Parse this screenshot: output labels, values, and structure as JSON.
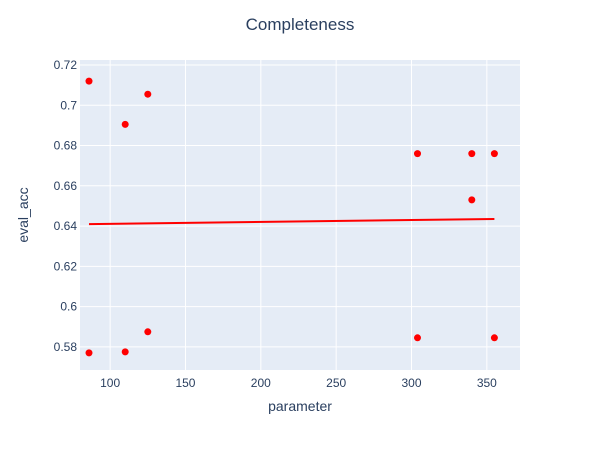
{
  "chart_data": {
    "type": "scatter",
    "title": "Completeness",
    "xlabel": "parameter",
    "ylabel": "eval_acc",
    "xlim": [
      80,
      372
    ],
    "ylim": [
      0.5685,
      0.7225
    ],
    "xticks": [
      100,
      150,
      200,
      250,
      300,
      350
    ],
    "xtick_labels": [
      "100",
      "150",
      "200",
      "250",
      "300",
      "350"
    ],
    "yticks": [
      0.58,
      0.6,
      0.62,
      0.64,
      0.66,
      0.68,
      0.7,
      0.72
    ],
    "ytick_labels": [
      "0.58",
      "0.6",
      "0.62",
      "0.64",
      "0.66",
      "0.68",
      "0.7",
      "0.72"
    ],
    "grid": true,
    "legend": "none",
    "colors": {
      "points": "#ff0000",
      "trendline": "#ff0000",
      "plot_background": "#e5ecf6",
      "grid": "#ffffff",
      "text": "#2a3f5f"
    },
    "series": [
      {
        "type": "scatter",
        "x": [
          86,
          86,
          110,
          110,
          125,
          125,
          304,
          304,
          340,
          340,
          355,
          355
        ],
        "y": [
          0.712,
          0.577,
          0.6905,
          0.5775,
          0.7055,
          0.5875,
          0.676,
          0.5845,
          0.676,
          0.653,
          0.676,
          0.5845
        ]
      },
      {
        "type": "line",
        "x": [
          86,
          355
        ],
        "y": [
          0.641,
          0.6435
        ]
      }
    ]
  }
}
